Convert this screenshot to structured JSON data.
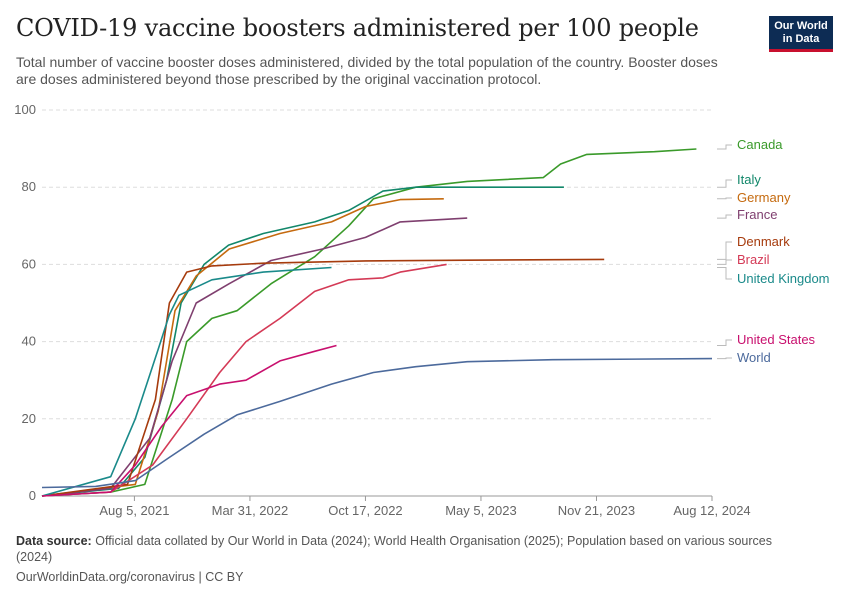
{
  "header": {
    "title": "COVID-19 vaccine boosters administered per 100 people",
    "subtitle": "Total number of vaccine booster doses administered, divided by the total population of the country. Booster doses are doses administered beyond those prescribed by the original vaccination protocol.",
    "logo_line1": "Our World",
    "logo_line2": "in Data"
  },
  "footer": {
    "source_label": "Data source:",
    "source_text": "Official data collated by Our World in Data (2024); World Health Organisation (2025); Population based on various sources (2024)",
    "link": "OurWorldinData.org/coronavirus | CC BY"
  },
  "chart_data": {
    "type": "line",
    "title": "COVID-19 vaccine boosters administered per 100 people",
    "xlabel": "",
    "ylabel": "",
    "x_ticks": [
      "Aug 5, 2021",
      "Mar 31, 2022",
      "Oct 17, 2022",
      "May 5, 2023",
      "Nov 21, 2023",
      "Aug 12, 2024"
    ],
    "y_ticks": [
      0,
      20,
      40,
      60,
      80,
      100
    ],
    "ylim": [
      0,
      100
    ],
    "xlim": [
      "2021-05-01",
      "2024-08-12"
    ],
    "grid": "horizontal dashed",
    "legend": "right, line-end labels",
    "series": [
      {
        "name": "Canada",
        "color": "#3a9a2a",
        "label_y": 90,
        "points": [
          [
            "2021-05-01",
            0
          ],
          [
            "2021-09-01",
            1
          ],
          [
            "2021-11-01",
            3
          ],
          [
            "2021-12-20",
            25
          ],
          [
            "2022-01-15",
            40
          ],
          [
            "2022-03-01",
            46
          ],
          [
            "2022-04-15",
            48
          ],
          [
            "2022-06-15",
            55
          ],
          [
            "2022-09-01",
            62
          ],
          [
            "2022-11-01",
            70
          ],
          [
            "2022-12-15",
            77
          ],
          [
            "2023-03-01",
            80
          ],
          [
            "2023-06-01",
            81.5
          ],
          [
            "2023-10-15",
            82.5
          ],
          [
            "2023-11-15",
            86
          ],
          [
            "2024-01-01",
            88.5
          ],
          [
            "2024-05-01",
            89.2
          ],
          [
            "2024-07-15",
            89.9
          ]
        ]
      },
      {
        "name": "Italy",
        "color": "#12876a",
        "label_y": 80.5,
        "points": [
          [
            "2021-05-01",
            0
          ],
          [
            "2021-09-15",
            2
          ],
          [
            "2021-11-01",
            10
          ],
          [
            "2021-12-10",
            30
          ],
          [
            "2022-01-05",
            50
          ],
          [
            "2022-02-15",
            60
          ],
          [
            "2022-03-31",
            65
          ],
          [
            "2022-06-01",
            68
          ],
          [
            "2022-09-01",
            71
          ],
          [
            "2022-11-01",
            74
          ],
          [
            "2023-01-01",
            79
          ],
          [
            "2023-03-01",
            80
          ],
          [
            "2023-11-21",
            80
          ]
        ]
      },
      {
        "name": "Germany",
        "color": "#c56a0f",
        "label_y": 76.5,
        "points": [
          [
            "2021-05-01",
            0
          ],
          [
            "2021-10-15",
            3
          ],
          [
            "2021-11-25",
            22
          ],
          [
            "2021-12-25",
            48
          ],
          [
            "2022-02-01",
            57
          ],
          [
            "2022-04-01",
            64
          ],
          [
            "2022-07-01",
            68
          ],
          [
            "2022-10-01",
            71
          ],
          [
            "2022-12-01",
            75
          ],
          [
            "2023-02-01",
            76.8
          ],
          [
            "2023-04-20",
            77
          ]
        ]
      },
      {
        "name": "France",
        "color": "#7f3f6f",
        "label_y": 72,
        "points": [
          [
            "2021-05-01",
            0
          ],
          [
            "2021-09-01",
            2
          ],
          [
            "2021-11-10",
            15
          ],
          [
            "2021-12-20",
            35
          ],
          [
            "2022-02-01",
            50
          ],
          [
            "2022-04-01",
            55
          ],
          [
            "2022-06-15",
            61
          ],
          [
            "2022-09-15",
            64
          ],
          [
            "2022-12-01",
            67
          ],
          [
            "2023-02-01",
            71
          ],
          [
            "2023-06-01",
            72
          ]
        ]
      },
      {
        "name": "Denmark",
        "color": "#a63b0d",
        "label_y": 65,
        "points": [
          [
            "2021-05-01",
            0
          ],
          [
            "2021-10-01",
            3
          ],
          [
            "2021-11-20",
            25
          ],
          [
            "2021-12-15",
            50
          ],
          [
            "2022-01-15",
            58
          ],
          [
            "2022-03-01",
            59.6
          ],
          [
            "2022-06-01",
            60.3
          ],
          [
            "2022-12-01",
            60.9
          ],
          [
            "2023-06-01",
            61.1
          ],
          [
            "2024-02-01",
            61.3
          ]
        ]
      },
      {
        "name": "Brazil",
        "color": "#d43a56",
        "label_y": 60,
        "points": [
          [
            "2021-05-01",
            0
          ],
          [
            "2021-09-01",
            1
          ],
          [
            "2021-11-15",
            8
          ],
          [
            "2022-01-15",
            20
          ],
          [
            "2022-03-15",
            32
          ],
          [
            "2022-05-01",
            40
          ],
          [
            "2022-07-01",
            46
          ],
          [
            "2022-09-01",
            53
          ],
          [
            "2022-11-01",
            56
          ],
          [
            "2023-01-01",
            56.5
          ],
          [
            "2023-02-01",
            58
          ],
          [
            "2023-04-25",
            60
          ]
        ]
      },
      {
        "name": "United Kingdom",
        "color": "#1a8a8a",
        "label_y": 57,
        "points": [
          [
            "2021-05-01",
            0
          ],
          [
            "2021-09-01",
            5
          ],
          [
            "2021-10-15",
            20
          ],
          [
            "2021-11-25",
            38
          ],
          [
            "2021-12-15",
            47
          ],
          [
            "2022-01-01",
            52
          ],
          [
            "2022-03-01",
            56
          ],
          [
            "2022-06-01",
            58
          ],
          [
            "2022-10-01",
            59.2
          ]
        ]
      },
      {
        "name": "United States",
        "color": "#c8106e",
        "label_y": 39,
        "points": [
          [
            "2021-05-01",
            0
          ],
          [
            "2021-09-01",
            1
          ],
          [
            "2021-10-15",
            8
          ],
          [
            "2021-12-01",
            18
          ],
          [
            "2022-01-15",
            26
          ],
          [
            "2022-03-15",
            29
          ],
          [
            "2022-05-01",
            30
          ],
          [
            "2022-07-01",
            35
          ],
          [
            "2022-09-01",
            37.5
          ],
          [
            "2022-10-10",
            39
          ]
        ]
      },
      {
        "name": "World",
        "color": "#4c6a9c",
        "label_y": 35,
        "points": [
          [
            "2021-05-01",
            2.2
          ],
          [
            "2021-08-05",
            2.5
          ],
          [
            "2021-10-15",
            4
          ],
          [
            "2021-12-15",
            10
          ],
          [
            "2022-02-15",
            16
          ],
          [
            "2022-04-15",
            21
          ],
          [
            "2022-07-01",
            24.5
          ],
          [
            "2022-10-01",
            29
          ],
          [
            "2022-12-15",
            32
          ],
          [
            "2023-03-01",
            33.5
          ],
          [
            "2023-06-01",
            34.8
          ],
          [
            "2023-11-01",
            35.3
          ],
          [
            "2024-08-12",
            35.6
          ]
        ]
      }
    ]
  }
}
